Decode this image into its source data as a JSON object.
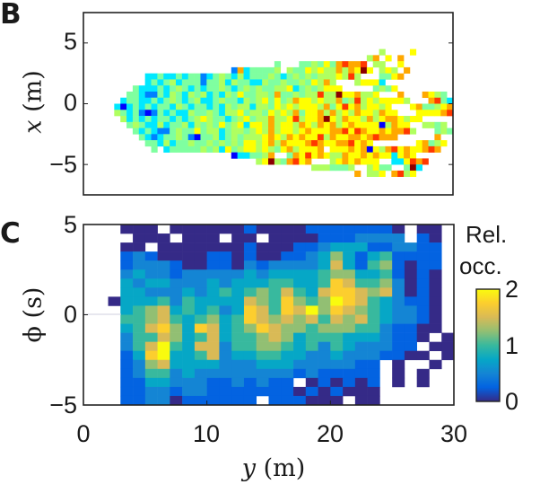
{
  "panels": {
    "b_label": "B",
    "c_label": "C"
  },
  "chart_data": [
    {
      "panel": "B",
      "type": "heatmap",
      "colormap": "jet",
      "xlabel_var": "y",
      "xlabel_unit": "(m)",
      "ylabel_var": "x",
      "ylabel_unit": "(m)",
      "xlim": [
        0,
        30
      ],
      "ylim": [
        -7.5,
        7.5
      ],
      "yticks": [
        5,
        0,
        -5
      ],
      "ytick_labels": [
        "5",
        "0",
        "−5"
      ],
      "cell_size": 0.5,
      "value_levels": 10,
      "note": "rows start at x=7.5 descending; segments are [start column, digit string]; digits 0-9 are relative colour levels",
      "rows": {
        "6": [
          [
            48,
            "5"
          ],
          [
            53,
            "6"
          ]
        ],
        "7": [
          [
            46,
            "57"
          ],
          [
            49,
            "6"
          ],
          [
            51,
            "7"
          ]
        ],
        "8": [
          [
            31,
            "4"
          ],
          [
            35,
            "44546478778"
          ],
          [
            47,
            "55"
          ],
          [
            51,
            "6"
          ]
        ],
        "9": [
          [
            24,
            "2734"
          ],
          [
            28,
            "4445"
          ],
          [
            33,
            "54465655757696"
          ],
          [
            48,
            "565"
          ],
          [
            52,
            "7"
          ]
        ],
        "10": [
          [
            10,
            "33433"
          ],
          [
            15,
            "4344234543"
          ],
          [
            25,
            "5344454345"
          ],
          [
            35,
            "4545556585"
          ],
          [
            48,
            "4467"
          ]
        ],
        "11": [
          [
            10,
            "3434534442"
          ],
          [
            20,
            "4453544335"
          ],
          [
            30,
            "44544546575"
          ],
          [
            44,
            "56663"
          ]
        ],
        "12": [
          [
            8,
            "43334345434"
          ],
          [
            19,
            "3445434545"
          ],
          [
            29,
            "4455634545"
          ],
          [
            39,
            "666"
          ],
          [
            47,
            "4546"
          ]
        ],
        "13": [
          [
            7,
            "443224354354"
          ],
          [
            19,
            "5343546445"
          ],
          [
            29,
            "54744545585"
          ],
          [
            40,
            "5966"
          ],
          [
            44,
            "7556"
          ],
          [
            51,
            "7"
          ],
          [
            55,
            "7654"
          ]
        ],
        "14": [
          [
            6,
            "34433434543"
          ],
          [
            17,
            "4533454435"
          ],
          [
            27,
            "456464576656"
          ],
          [
            39,
            "5574585656"
          ],
          [
            49,
            "6665"
          ],
          [
            56,
            "7843"
          ]
        ],
        "15": [
          [
            5,
            "3134343443"
          ],
          [
            15,
            "54344343545"
          ],
          [
            26,
            "53554656566"
          ],
          [
            37,
            "6574686756"
          ],
          [
            47,
            "656"
          ],
          [
            53,
            "6744567"
          ]
        ],
        "16": [
          [
            5,
            "54"
          ],
          [
            7,
            "34212434335"
          ],
          [
            18,
            "44543556"
          ],
          [
            26,
            "4554656574"
          ],
          [
            36,
            "66757565766"
          ],
          [
            47,
            "5766"
          ],
          [
            54,
            "666678"
          ]
        ],
        "17": [
          [
            6,
            "53434344343"
          ],
          [
            17,
            "45654434564"
          ],
          [
            28,
            "5575568566"
          ],
          [
            38,
            "7965766575"
          ],
          [
            48,
            "6776566"
          ]
        ],
        "18": [
          [
            7,
            "4543353445"
          ],
          [
            17,
            "3545464563"
          ],
          [
            27,
            "6657566576"
          ],
          [
            37,
            "5767567666"
          ],
          [
            47,
            "615766"
          ],
          [
            55,
            "5545"
          ]
        ],
        "19": [
          [
            8,
            "434322454"
          ],
          [
            17,
            "46455345545"
          ],
          [
            28,
            "65756656766"
          ],
          [
            39,
            "6778687667"
          ],
          [
            49,
            "67785"
          ],
          [
            57,
            "454"
          ]
        ],
        "20": [
          [
            9,
            "4323445"
          ],
          [
            16,
            "42144534545"
          ],
          [
            27,
            "5567657676"
          ],
          [
            37,
            "68576677678"
          ],
          [
            48,
            "777"
          ],
          [
            57,
            "7"
          ]
        ],
        "21": [
          [
            10,
            "4435"
          ],
          [
            14,
            "3445445454"
          ],
          [
            24,
            "5466567576"
          ],
          [
            34,
            "66787667786"
          ],
          [
            45,
            "76"
          ],
          [
            54,
            "67456"
          ]
        ],
        "22": [
          [
            11,
            "4"
          ],
          [
            13,
            "3444445"
          ],
          [
            20,
            "45364566"
          ],
          [
            28,
            "5654"
          ],
          [
            32,
            "6756"
          ],
          [
            36,
            "667"
          ],
          [
            40,
            "66676716578"
          ],
          [
            51,
            "6766787"
          ]
        ],
        "23": [
          [
            24,
            "1334"
          ],
          [
            28,
            "457"
          ],
          [
            33,
            "47686765576"
          ],
          [
            44,
            "6767"
          ],
          [
            48,
            "663"
          ],
          [
            51,
            "676"
          ]
        ],
        "24": [
          [
            28,
            "5695"
          ],
          [
            32,
            "47867"
          ],
          [
            40,
            "5676766"
          ],
          [
            47,
            "6"
          ],
          [
            50,
            "33"
          ],
          [
            52,
            "6878"
          ]
        ],
        "25": [
          [
            37,
            "555"
          ],
          [
            40,
            "4445"
          ],
          [
            46,
            "5644"
          ],
          [
            52,
            "493"
          ]
        ],
        "26": [
          [
            44,
            "7"
          ],
          [
            46,
            "55"
          ],
          [
            48,
            "6"
          ],
          [
            50,
            "7856"
          ]
        ]
      }
    },
    {
      "panel": "C",
      "type": "heatmap",
      "colormap": "parula",
      "xlabel_var": "y",
      "xlabel_unit": "(m)",
      "ylabel_var": "ϕ",
      "ylabel_unit": "(s)",
      "xlim": [
        0,
        30
      ],
      "ylim": [
        -5,
        5
      ],
      "xticks": [
        0,
        10,
        20,
        30
      ],
      "xtick_labels": [
        "0",
        "10",
        "20",
        "30"
      ],
      "yticks": [
        5,
        0,
        -5
      ],
      "ytick_labels": [
        "5",
        "0",
        "−5"
      ],
      "cell_width": 1,
      "cell_height": 0.5,
      "value_scale": 0.25,
      "note": "rows from phi=5 downward; each char is value/0.25, '.' = no data",
      "rows": [
        "...000.0000001000011111110.00.",
        "....000.000.00.00001112222.10..",
        "...00.00000001000112333112211.",
        "...12100001101001123531341111 0",
        "...12221001102122223631451011 0",
        "...23221222223233334553341010 0",
        "...32332223233344334764452010 0",
        "...33222323434546436776562010 0",
        "..033342433336547545876432110 0",
        "...34563434237647685765432210 0",
        "...44564345347656564656432210 0",
        "...34675376345765545554421100 0",
        "...2446534634456534443332110 0.",
        "...246843662445543424322211 00.",
        "...1378334623344332232221100 0.",
        "...125633332223332222211 0..0..",
        "...124423222222221211111 0.0...",
        "...11332221121211.010101 0.0...",
        "...112212211111110101000......",
        "...11220111111.111000.00......"
      ],
      "colorbar": {
        "title_line1": "Rel.",
        "title_line2": "occ.",
        "ticks": [
          0,
          1,
          2
        ],
        "tick_labels": [
          "0",
          "1",
          "2"
        ],
        "range": [
          0,
          2
        ]
      }
    }
  ]
}
